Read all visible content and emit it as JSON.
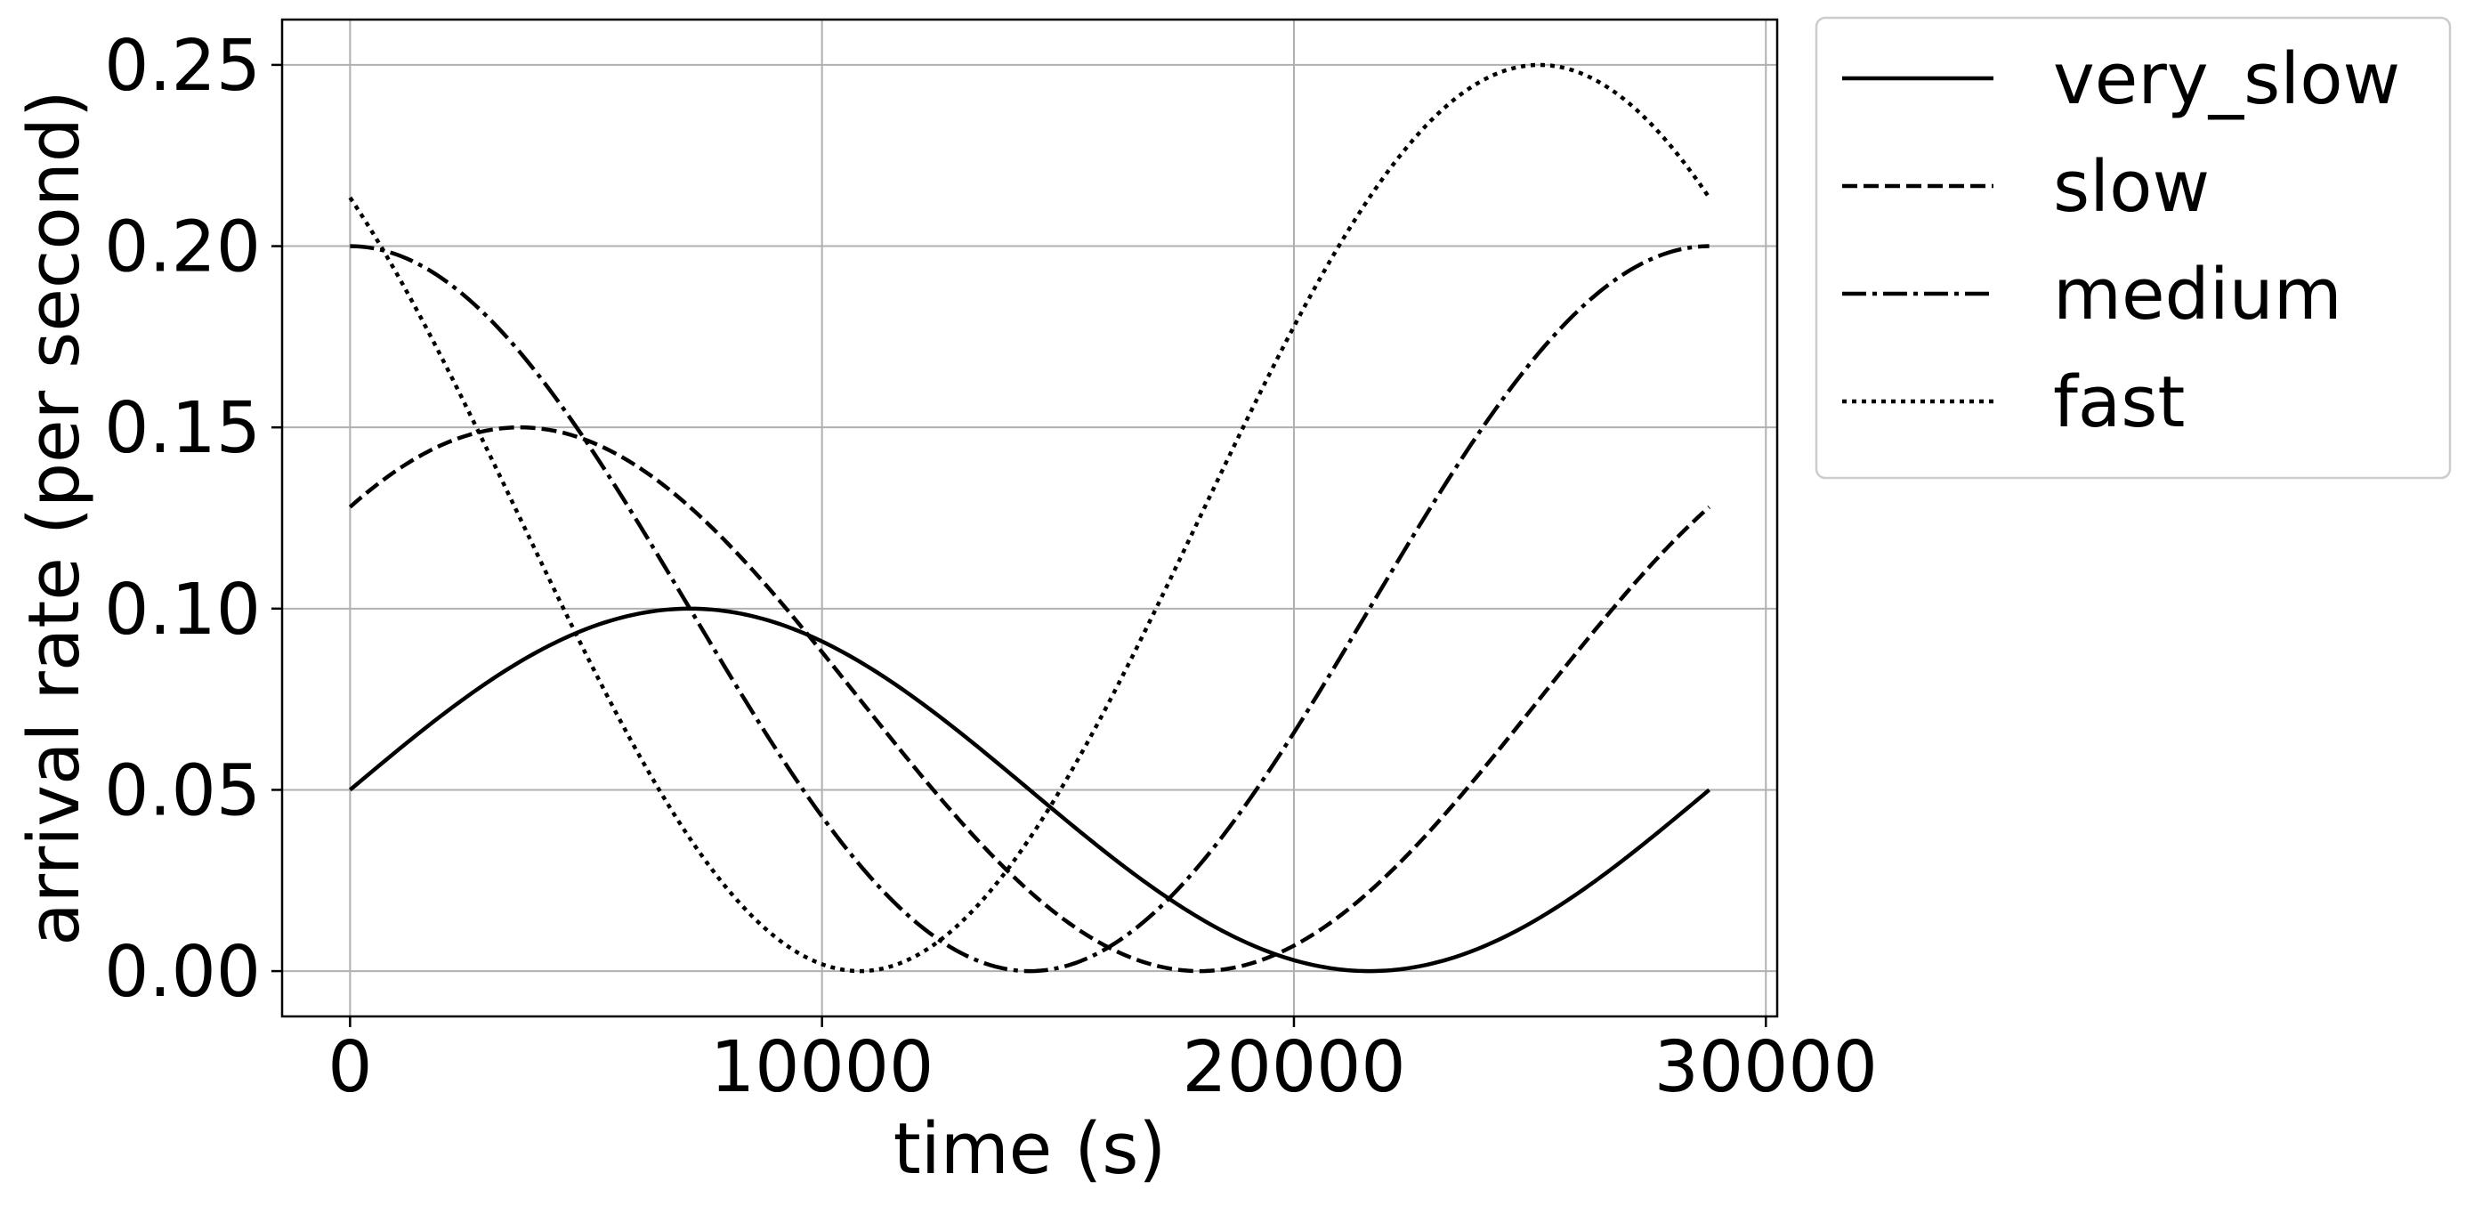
{
  "chart_data": {
    "type": "line",
    "title": "",
    "xlabel": "time (s)",
    "ylabel": "arrival rate (per second)",
    "xlim": [
      -1440,
      30240
    ],
    "ylim": [
      -0.0125,
      0.2625
    ],
    "grid": true,
    "legend_position": "outside-top-right",
    "x_ticks": [
      0,
      10000,
      20000,
      30000
    ],
    "x_tick_labels": [
      "0",
      "10000",
      "20000",
      "30000"
    ],
    "y_ticks": [
      0.0,
      0.05,
      0.1,
      0.15,
      0.2,
      0.25
    ],
    "y_tick_labels": [
      "0.00",
      "0.05",
      "0.10",
      "0.15",
      "0.20",
      "0.25"
    ],
    "x_start": 0,
    "x_end": 28800,
    "series": [
      {
        "name": "very_slow",
        "style": "solid",
        "amplitude": 0.05,
        "offset": 0.05,
        "period": 28800,
        "peak_time": 7200,
        "x": [
          0,
          3600,
          7200,
          10800,
          14400,
          18000,
          21600,
          25200,
          28800
        ],
        "values": [
          0.05,
          0.085,
          0.1,
          0.085,
          0.05,
          0.015,
          0.0,
          0.015,
          0.05
        ]
      },
      {
        "name": "slow",
        "style": "dashed",
        "amplitude": 0.075,
        "offset": 0.075,
        "period": 28800,
        "peak_time": 3600,
        "x": [
          0,
          3600,
          7200,
          10800,
          14400,
          18000,
          21600,
          25200,
          28800
        ],
        "values": [
          0.128,
          0.15,
          0.128,
          0.075,
          0.022,
          0.0,
          0.022,
          0.075,
          0.128
        ]
      },
      {
        "name": "medium",
        "style": "dashdot",
        "amplitude": 0.1,
        "offset": 0.1,
        "period": 28800,
        "peak_time": 0,
        "x": [
          0,
          3600,
          7200,
          10800,
          14400,
          18000,
          21600,
          25200,
          28800
        ],
        "values": [
          0.2,
          0.171,
          0.1,
          0.029,
          0.0,
          0.029,
          0.1,
          0.171,
          0.2
        ]
      },
      {
        "name": "fast",
        "style": "dotted",
        "amplitude": 0.125,
        "offset": 0.125,
        "period": 28800,
        "peak_time": 25200,
        "x": [
          0,
          3600,
          7200,
          10800,
          14400,
          18000,
          21600,
          25200,
          28800
        ],
        "values": [
          0.213,
          0.125,
          0.037,
          0.0,
          0.037,
          0.125,
          0.213,
          0.25,
          0.213
        ]
      }
    ]
  }
}
